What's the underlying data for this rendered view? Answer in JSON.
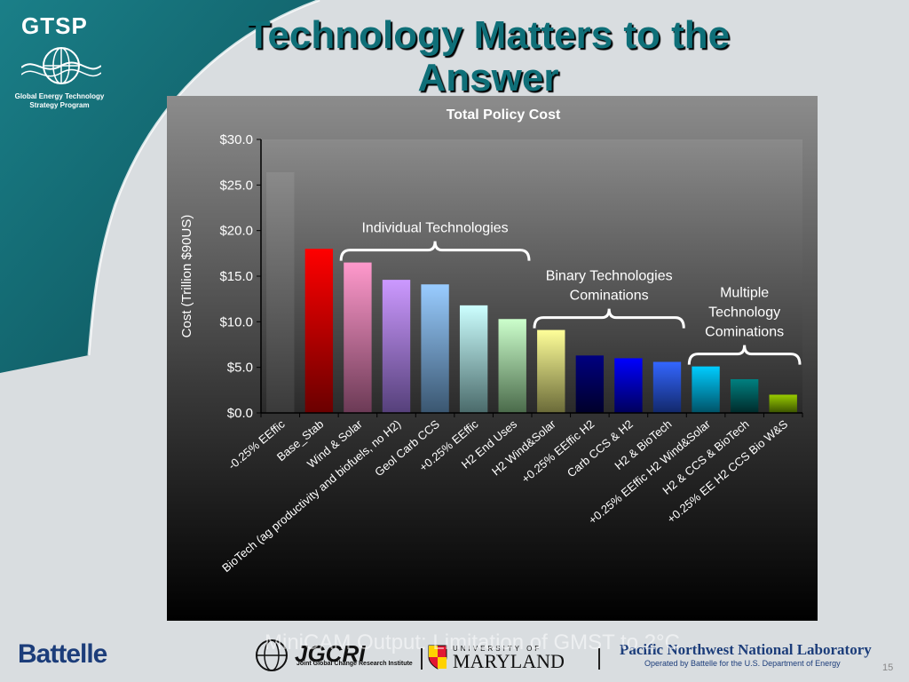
{
  "slide": {
    "title_line1": "Technology Matters to the",
    "title_line2": "Answer",
    "page_number": "15",
    "colors": {
      "title": "#0f6f78",
      "teal_banner": "#13707a",
      "chart_bg_top": "#8a8a8a",
      "chart_bg_bottom": "#000000"
    }
  },
  "logos": {
    "gtsp": "GTSP",
    "gtsp_sub_line1": "Global Energy Technology",
    "gtsp_sub_line2": "Strategy Program",
    "battelle": "Battelle",
    "jgcri_name": "JGCRI",
    "jgcri_sub": "Joint Global Change Research Institute",
    "umd_top": "UNIVERSITY OF",
    "umd": "MARYLAND",
    "pnnl": "Pacific Northwest National Laboratory",
    "pnnl_sub": "Operated by Battelle for the U.S. Department of Energy"
  },
  "footer": {
    "minicam": "MiniCAM Output: Limitation of GMST to 2°C"
  },
  "chart_data": {
    "type": "bar",
    "title": "Total Policy Cost",
    "ylabel": "Cost (Trillion $90US)",
    "xlabel": "",
    "ylim": [
      0,
      30
    ],
    "yticks": [
      "$0.0",
      "$5.0",
      "$10.0",
      "$15.0",
      "$20.0",
      "$25.0",
      "$30.0"
    ],
    "grid": false,
    "categories": [
      "-0.25% EEffic",
      "Base_Stab",
      "Wind & Solar",
      "BioTech (ag productivity and biofuels, no H2)",
      "Geol Carb CCS",
      "+0.25% EEffic",
      "H2 End Uses",
      "H2 Wind&Solar",
      "+0.25% EEffic H2",
      "Carb CCS & H2",
      "H2 & BioTech",
      "+0.25% EEffic H2 Wind&Solar",
      "H2 & CCS & BioTech",
      "+0.25% EE H2 CCS Bio W&S"
    ],
    "values": [
      26.4,
      18.0,
      16.5,
      14.6,
      14.1,
      11.8,
      10.3,
      9.1,
      6.3,
      6.0,
      5.6,
      5.1,
      3.7,
      2.0
    ],
    "bar_colors": [
      [
        "#8a8a8a",
        "#3a3a3a"
      ],
      [
        "#ff0000",
        "#6a0000"
      ],
      [
        "#ff99cc",
        "#6b3a55"
      ],
      [
        "#cc99ff",
        "#55407a"
      ],
      [
        "#99ccff",
        "#3a5670"
      ],
      [
        "#ccffff",
        "#4a6a6a"
      ],
      [
        "#ccffcc",
        "#4a6a4a"
      ],
      [
        "#ffff99",
        "#6a6a38"
      ],
      [
        "#000080",
        "#00002a"
      ],
      [
        "#0000ff",
        "#00005a"
      ],
      [
        "#3366ff",
        "#12286a"
      ],
      [
        "#00ccff",
        "#005266"
      ],
      [
        "#008080",
        "#002a2a"
      ],
      [
        "#99cc00",
        "#3a5200"
      ]
    ],
    "annotations": [
      {
        "label_lines": [
          "Individual Technologies"
        ],
        "from_bar": 2,
        "to_bar": 7
      },
      {
        "label_lines": [
          "Binary Technologies",
          "Cominations"
        ],
        "from_bar": 7,
        "to_bar": 11
      },
      {
        "label_lines": [
          "Multiple",
          "Technology",
          "Cominations"
        ],
        "from_bar": 11,
        "to_bar": 14
      }
    ]
  }
}
